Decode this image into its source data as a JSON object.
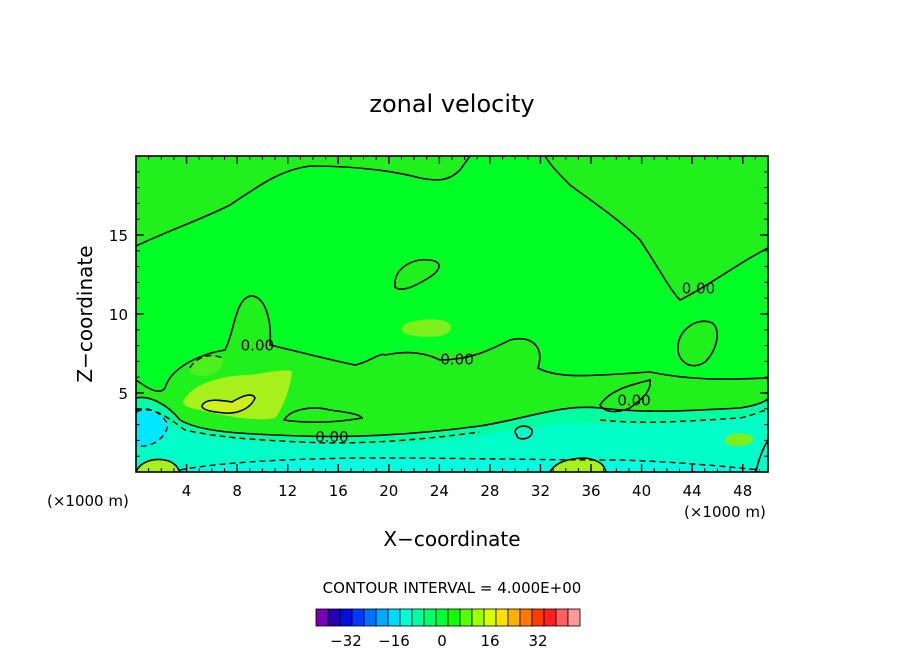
{
  "chart_data": {
    "type": "contour",
    "title": "zonal velocity",
    "xlabel": "X−coordinate",
    "ylabel": "Z−coordinate",
    "x_unit_left": "(×1000 m)",
    "x_unit_right": "(×1000 m)",
    "xlim": [
      0,
      50
    ],
    "ylim": [
      0,
      20
    ],
    "xticks": [
      4,
      8,
      12,
      16,
      20,
      24,
      28,
      32,
      36,
      40,
      44,
      48
    ],
    "yticks": [
      5,
      10,
      15
    ],
    "contour_interval_text": "CONTOUR INTERVAL = 4.000E+00",
    "contour_labels": [
      {
        "text": "0.00",
        "x": 9.6,
        "z": 7.7
      },
      {
        "text": "0.00",
        "x": 25.4,
        "z": 6.8
      },
      {
        "text": "0.00",
        "x": 15.5,
        "z": 1.9
      },
      {
        "text": "0.00",
        "x": 44.5,
        "z": 11.3
      },
      {
        "text": "0.00",
        "x": 39.4,
        "z": 4.2
      }
    ],
    "colorbar": {
      "colors": [
        "#7a00b4",
        "#2200b0",
        "#0010d8",
        "#0038ff",
        "#0070ff",
        "#00a8ff",
        "#00d8ff",
        "#00ffd8",
        "#00ffa0",
        "#00ff68",
        "#00ff38",
        "#10ff00",
        "#58ff00",
        "#a0ff00",
        "#d8ff00",
        "#ffe000",
        "#ffb000",
        "#ff7800",
        "#ff3c00",
        "#ff2020",
        "#ff6060",
        "#ff9898"
      ],
      "tick_labels": [
        "−32",
        "−16",
        "0",
        "16",
        "32"
      ],
      "tick_values": [
        -32,
        -16,
        0,
        16,
        32
      ]
    },
    "background_color": "#00ff24"
  }
}
